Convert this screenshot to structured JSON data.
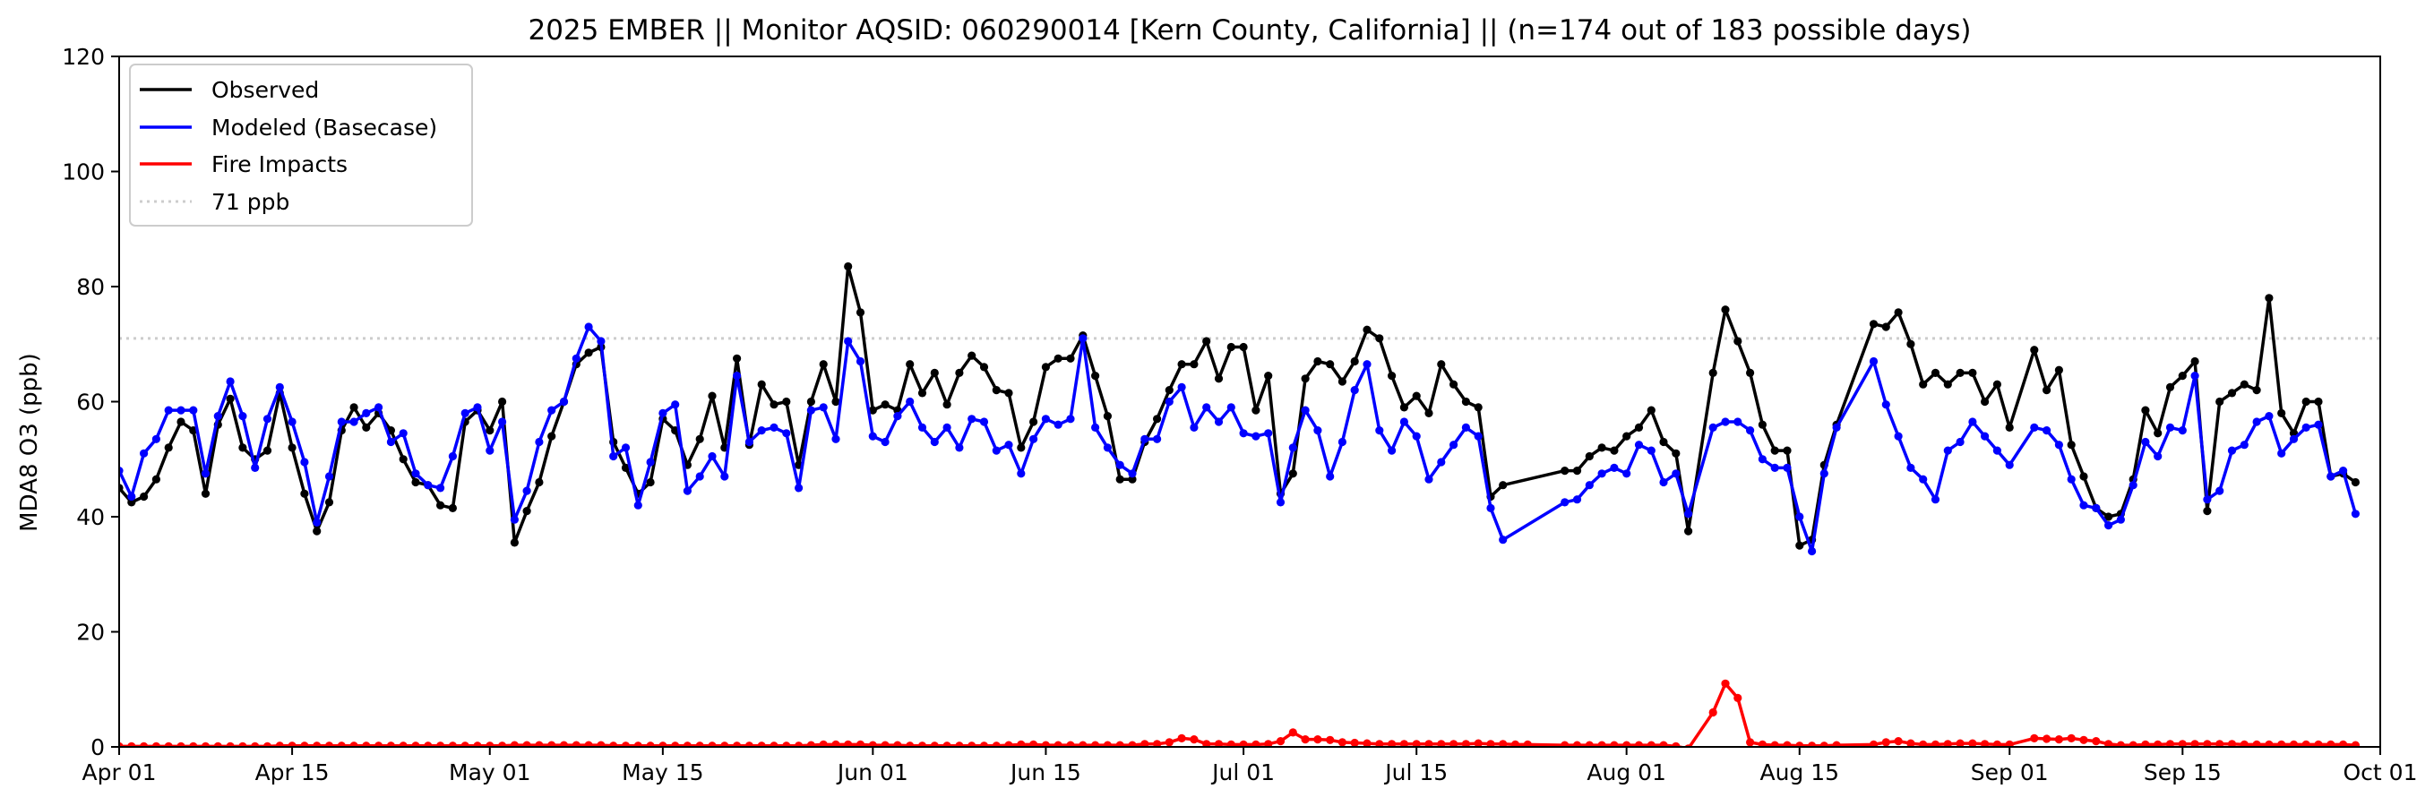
{
  "chart_data": {
    "type": "line",
    "title": "2025 EMBER || Monitor AQSID: 060290014 [Kern County, California] || (n=174 out of 183 possible days)",
    "xlabel": "",
    "ylabel": "MDA8 O3 (ppb)",
    "xlim": [
      "2025-04-01",
      "2025-10-01"
    ],
    "ylim": [
      0,
      120
    ],
    "yticks": [
      0,
      20,
      40,
      60,
      80,
      100,
      120
    ],
    "xticks": [
      {
        "date": "2025-04-01",
        "label": "Apr 01"
      },
      {
        "date": "2025-04-15",
        "label": "Apr 15"
      },
      {
        "date": "2025-05-01",
        "label": "May 01"
      },
      {
        "date": "2025-05-15",
        "label": "May 15"
      },
      {
        "date": "2025-06-01",
        "label": "Jun 01"
      },
      {
        "date": "2025-06-15",
        "label": "Jun 15"
      },
      {
        "date": "2025-07-01",
        "label": "Jul 01"
      },
      {
        "date": "2025-07-15",
        "label": "Jul 15"
      },
      {
        "date": "2025-08-01",
        "label": "Aug 01"
      },
      {
        "date": "2025-08-15",
        "label": "Aug 15"
      },
      {
        "date": "2025-09-01",
        "label": "Sep 01"
      },
      {
        "date": "2025-09-15",
        "label": "Sep 15"
      },
      {
        "date": "2025-10-01",
        "label": "Oct 01"
      }
    ],
    "grid": false,
    "legend_position": "top-left",
    "threshold": {
      "name": "71 ppb",
      "value": 71,
      "color": "#cccccc"
    },
    "series": [
      {
        "name": "Observed",
        "color": "#000000",
        "segments": [
          {
            "start": "2025-04-01",
            "values": [
              45,
              42.5,
              43.5,
              46.5,
              52,
              56.5,
              55,
              44,
              56,
              60.5,
              52,
              50,
              51.5,
              61.5,
              52,
              44,
              37.5,
              42.5,
              55,
              59,
              55.5,
              58,
              55,
              50,
              46,
              45.5,
              42,
              41.5,
              56.5,
              58.5,
              55,
              60,
              35.5,
              41,
              46,
              54,
              60,
              66.5,
              68.5,
              69.5,
              53,
              48.5,
              44,
              46,
              57,
              55,
              49,
              53.5,
              61,
              52,
              67.5,
              52.5,
              63,
              59.5,
              60,
              49,
              60,
              66.5,
              60,
              83.5,
              75.5,
              58.5,
              59.5,
              58.5,
              66.5,
              61.5,
              65,
              59.5,
              65,
              68,
              66,
              62,
              61.5,
              52,
              56.5,
              66,
              67.5,
              67.5,
              71.5,
              64.5,
              57.5,
              46.5,
              46.5,
              53,
              57,
              62,
              66.5,
              66.5,
              70.5,
              64,
              69.5,
              69.5,
              58.5,
              64.5,
              44,
              47.5,
              64,
              67,
              66.5,
              63.5,
              67,
              72.5,
              71,
              64.5,
              59,
              61,
              58,
              66.5,
              63,
              60,
              59,
              43.5,
              45.5
            ]
          },
          {
            "start": "2025-07-27",
            "values": [
              48,
              48,
              50.5,
              52,
              51.5,
              54,
              55.5,
              58.5,
              53,
              51,
              37.5
            ]
          },
          {
            "start": "2025-08-08",
            "values": [
              65,
              76,
              70.5,
              65,
              56,
              51.5,
              51.5,
              35,
              36,
              49,
              56
            ]
          },
          {
            "start": "2025-08-21",
            "values": [
              73.5,
              73,
              75.5,
              70,
              63,
              65,
              63,
              65,
              65,
              60,
              63,
              55.5
            ]
          },
          {
            "start": "2025-09-03",
            "values": [
              69,
              62,
              65.5,
              52.5,
              47,
              41.5,
              40,
              40.5,
              46.5,
              58.5,
              54.5,
              62.5,
              64.5,
              67,
              41,
              60,
              61.5,
              63,
              62,
              78,
              58,
              54.5,
              60,
              60,
              47,
              47.5,
              46
            ]
          }
        ]
      },
      {
        "name": "Modeled (Basecase)",
        "color": "#0000ff",
        "segments": [
          {
            "start": "2025-04-01",
            "values": [
              48,
              43.5,
              51,
              53.5,
              58.5,
              58.5,
              58.5,
              47.5,
              57.5,
              63.5,
              57.5,
              48.5,
              57,
              62.5,
              56.5,
              49.5,
              39,
              47,
              56.5,
              56.5,
              58,
              59,
              53,
              54.5,
              47.5,
              45.5,
              45,
              50.5,
              58,
              59,
              51.5,
              56.5,
              39.5,
              44.5,
              53,
              58.5,
              60,
              67.5,
              73,
              70.5,
              50.5,
              52,
              42,
              49.5,
              58,
              59.5,
              44.5,
              47,
              50.5,
              47,
              64.5,
              53,
              55,
              55.5,
              54.5,
              45,
              58.5,
              59,
              53.5,
              70.5,
              67,
              54,
              53,
              57.5,
              60,
              55.5,
              53,
              55.5,
              52,
              57,
              56.5,
              51.5,
              52.5,
              47.5,
              53.5,
              57,
              56,
              57,
              71,
              55.5,
              52,
              49,
              47.5,
              53.5,
              53.5,
              60,
              62.5,
              55.5,
              59,
              56.5,
              59,
              54.5,
              54,
              54.5,
              42.5,
              52,
              58.5,
              55,
              47,
              53,
              62,
              66.5,
              55,
              51.5,
              56.5,
              54,
              46.5,
              49.5,
              52.5,
              55.5,
              54,
              41.5,
              36
            ]
          },
          {
            "start": "2025-07-27",
            "values": [
              42.5,
              43,
              45.5,
              47.5,
              48.5,
              47.5,
              52.5,
              51.5,
              46,
              47.5,
              40.5
            ]
          },
          {
            "start": "2025-08-08",
            "values": [
              55.5,
              56.5,
              56.5,
              55,
              50,
              48.5,
              48.5,
              40,
              34,
              47.5,
              55.5
            ]
          },
          {
            "start": "2025-08-21",
            "values": [
              67,
              59.5,
              54,
              48.5,
              46.5,
              43,
              51.5,
              53,
              56.5,
              54,
              51.5,
              49
            ]
          },
          {
            "start": "2025-09-03",
            "values": [
              55.5,
              55,
              52.5,
              46.5,
              42,
              41.5,
              38.5,
              39.5,
              45.5,
              53,
              50.5,
              55.5,
              55,
              64.5,
              43,
              44.5,
              51.5,
              52.5,
              56.5,
              57.5,
              51,
              53.5,
              55.5,
              56,
              47,
              48,
              40.5
            ]
          }
        ]
      },
      {
        "name": "Fire Impacts",
        "color": "#ff0000",
        "segments": [
          {
            "start": "2025-04-01",
            "values": [
              0.1,
              0.1,
              0.1,
              0.1,
              0.1,
              0.1,
              0.1,
              0.1,
              0.1,
              0.1,
              0.1,
              0.1,
              0.1,
              0.2,
              0.2,
              0.2,
              0.2,
              0.2,
              0.2,
              0.2,
              0.2,
              0.2,
              0.2,
              0.2,
              0.2,
              0.2,
              0.2,
              0.2,
              0.2,
              0.2,
              0.2,
              0.2,
              0.3,
              0.3,
              0.3,
              0.3,
              0.3,
              0.3,
              0.3,
              0.3,
              0.2,
              0.2,
              0.2,
              0.2,
              0.2,
              0.2,
              0.2,
              0.2,
              0.2,
              0.2,
              0.2,
              0.2,
              0.2,
              0.2,
              0.2,
              0.2,
              0.3,
              0.4,
              0.4,
              0.4,
              0.4,
              0.3,
              0.3,
              0.3,
              0.2,
              0.2,
              0.2,
              0.2,
              0.2,
              0.2,
              0.2,
              0.2,
              0.3,
              0.4,
              0.4,
              0.3,
              0.3,
              0.3,
              0.3,
              0.3,
              0.3,
              0.3,
              0.3,
              0.5,
              0.5,
              0.8,
              1.5,
              1.3,
              0.5,
              0.5,
              0.4,
              0.4,
              0.4,
              0.5,
              1,
              2.5,
              1.3,
              1.3,
              1.2,
              0.8,
              0.7,
              0.6,
              0.5,
              0.5,
              0.5,
              0.5,
              0.5,
              0.5,
              0.5,
              0.5,
              0.6,
              0.5,
              0.5,
              0.4,
              0.4
            ]
          },
          {
            "start": "2025-07-27",
            "values": [
              0.3,
              0.3,
              0.3,
              0.3,
              0.3,
              0.3,
              0.3,
              0.3,
              0.3,
              0.1,
              -0.3
            ]
          },
          {
            "start": "2025-08-08",
            "values": [
              6,
              11,
              8.5,
              0.8,
              0.4,
              0.3,
              0.3,
              0.2,
              0.2,
              0.2,
              0.3
            ]
          },
          {
            "start": "2025-08-21",
            "values": [
              0.4,
              0.8,
              1,
              0.6,
              0.4,
              0.4,
              0.5,
              0.6,
              0.6,
              0.5,
              0.4,
              0.4
            ]
          },
          {
            "start": "2025-09-03",
            "values": [
              1.5,
              1.4,
              1.3,
              1.5,
              1.2,
              1,
              0.5,
              0.3,
              0.3,
              0.4,
              0.4,
              0.5,
              0.5,
              0.5,
              0.5,
              0.5,
              0.5,
              0.4,
              0.4,
              0.4,
              0.4,
              0.4,
              0.4,
              0.4,
              0.4,
              0.4,
              0.3
            ]
          }
        ]
      }
    ]
  }
}
